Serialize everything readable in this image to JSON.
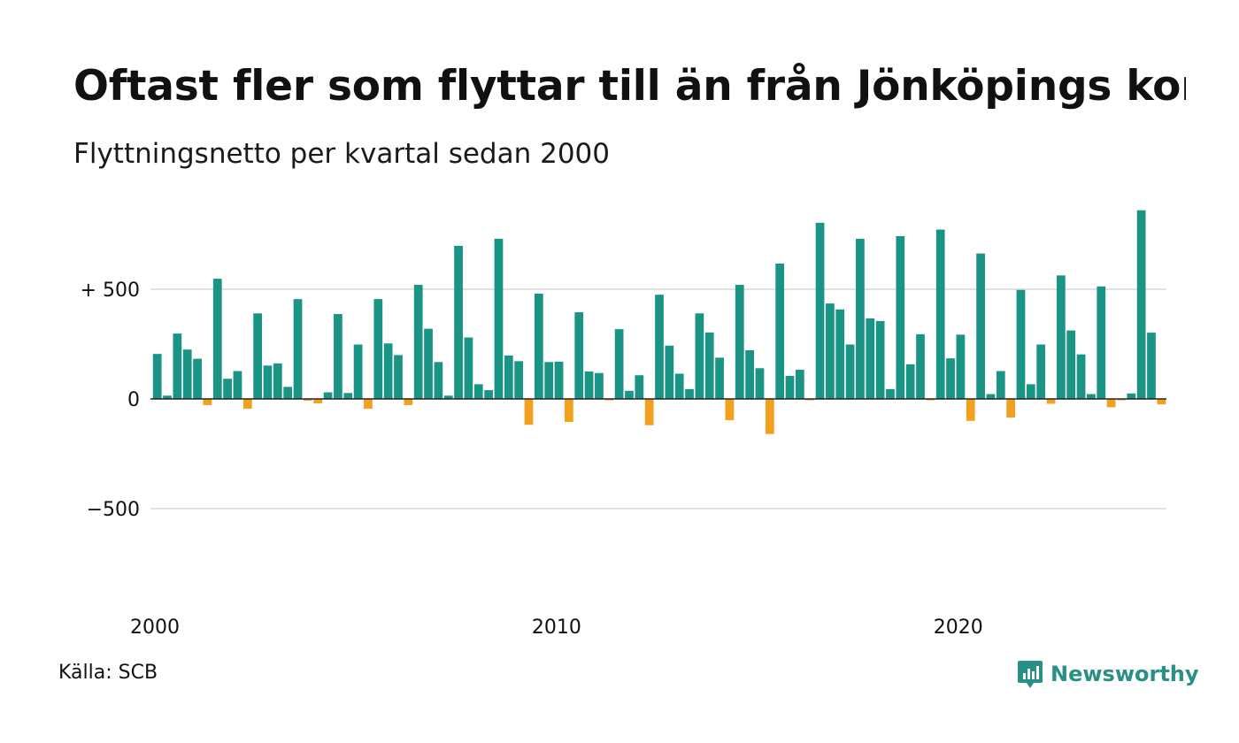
{
  "title": "Oftast fler som flyttar till än från Jönköpings kommun",
  "subtitle": "Flyttningsnetto per kvartal sedan 2000",
  "source": "Källa: SCB",
  "brand": "Newsworthy",
  "colors": {
    "positive": "#1a9485",
    "negative": "#f2a01e",
    "grid": "#e0e0e0",
    "zero_line": "#222222"
  },
  "chart_data": {
    "type": "bar",
    "x_start": "2000",
    "x_end": "2025",
    "ylim": [
      -800,
      860
    ],
    "yticks": [
      {
        "value": 500,
        "label": "+ 500"
      },
      {
        "value": 0,
        "label": "0"
      },
      {
        "value": -500,
        "label": "−500"
      }
    ],
    "xticks": [
      "2000",
      "2010",
      "2020"
    ],
    "grid": true,
    "values": [
      205,
      15,
      298,
      225,
      183,
      -28,
      548,
      92,
      127,
      -45,
      390,
      152,
      162,
      55,
      455,
      -8,
      -20,
      30,
      387,
      27,
      248,
      -45,
      455,
      253,
      200,
      -28,
      520,
      320,
      168,
      15,
      698,
      280,
      67,
      40,
      730,
      198,
      172,
      -118,
      480,
      168,
      170,
      -105,
      395,
      125,
      118,
      -5,
      318,
      37,
      108,
      -120,
      475,
      243,
      115,
      45,
      390,
      303,
      188,
      -97,
      520,
      222,
      140,
      -160,
      617,
      105,
      133,
      -5,
      803,
      435,
      408,
      248,
      730,
      367,
      355,
      45,
      742,
      158,
      295,
      -5,
      772,
      185,
      293,
      -100,
      663,
      22,
      127,
      -85,
      497,
      67,
      248,
      -22,
      563,
      312,
      203,
      22,
      513,
      -38,
      -5,
      25,
      860,
      302,
      -25
    ]
  }
}
